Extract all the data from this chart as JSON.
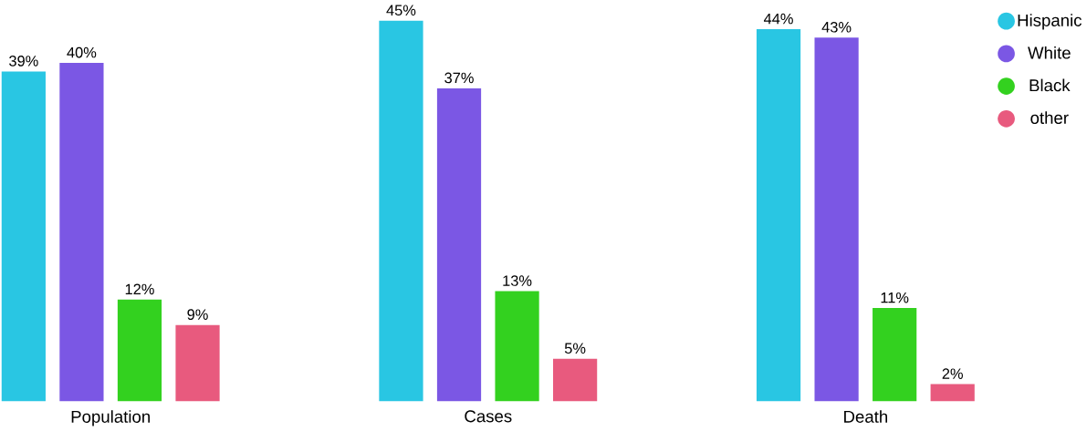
{
  "chart_data": {
    "type": "bar",
    "categories": [
      "Population",
      "Cases",
      "Death"
    ],
    "series": [
      {
        "name": "Hispanic",
        "color": "#29c6e3",
        "values": [
          39,
          45,
          44
        ],
        "value_labels": [
          "39%",
          "45%",
          "44%"
        ]
      },
      {
        "name": "White",
        "color": "#7b57e4",
        "values": [
          40,
          37,
          43
        ],
        "value_labels": [
          "40%",
          "37%",
          "43%"
        ]
      },
      {
        "name": "Black",
        "color": "#33d11f",
        "values": [
          12,
          13,
          11
        ],
        "value_labels": [
          "12%",
          "13%",
          "11%"
        ]
      },
      {
        "name": "other",
        "color": "#e85a7e",
        "values": [
          9,
          5,
          2
        ],
        "value_labels": [
          "9%",
          "5%",
          "2%"
        ]
      }
    ],
    "legend": "right"
  }
}
